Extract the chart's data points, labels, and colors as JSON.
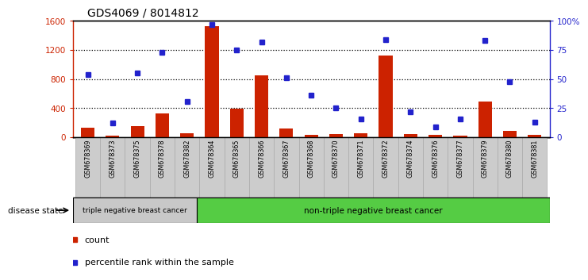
{
  "title": "GDS4069 / 8014812",
  "samples": [
    "GSM678369",
    "GSM678373",
    "GSM678375",
    "GSM678378",
    "GSM678382",
    "GSM678364",
    "GSM678365",
    "GSM678366",
    "GSM678367",
    "GSM678368",
    "GSM678370",
    "GSM678371",
    "GSM678372",
    "GSM678374",
    "GSM678376",
    "GSM678377",
    "GSM678379",
    "GSM678380",
    "GSM678381"
  ],
  "counts": [
    130,
    20,
    150,
    330,
    55,
    1530,
    390,
    850,
    125,
    35,
    40,
    50,
    1120,
    45,
    30,
    25,
    490,
    90,
    30
  ],
  "percentiles": [
    54,
    12,
    55,
    73,
    31,
    97,
    75,
    82,
    51,
    36,
    25,
    16,
    84,
    22,
    9,
    16,
    83,
    48,
    13
  ],
  "group1_count": 5,
  "group1_label": "triple negative breast cancer",
  "group2_label": "non-triple negative breast cancer",
  "group1_color": "#c8c8c8",
  "group2_color": "#55cc44",
  "bar_color": "#cc2200",
  "marker_color": "#2222cc",
  "ylim_left": [
    0,
    1600
  ],
  "ylim_right": [
    0,
    100
  ],
  "yticks_left": [
    0,
    400,
    800,
    1200,
    1600
  ],
  "ytick_labels_right": [
    "0",
    "25",
    "50",
    "75",
    "100%"
  ],
  "disease_state_label": "disease state",
  "legend_bar": "count",
  "legend_marker": "percentile rank within the sample",
  "title_fontsize": 10,
  "tick_fontsize": 7.5,
  "label_fontsize": 7.5,
  "sample_fontsize": 5.8
}
